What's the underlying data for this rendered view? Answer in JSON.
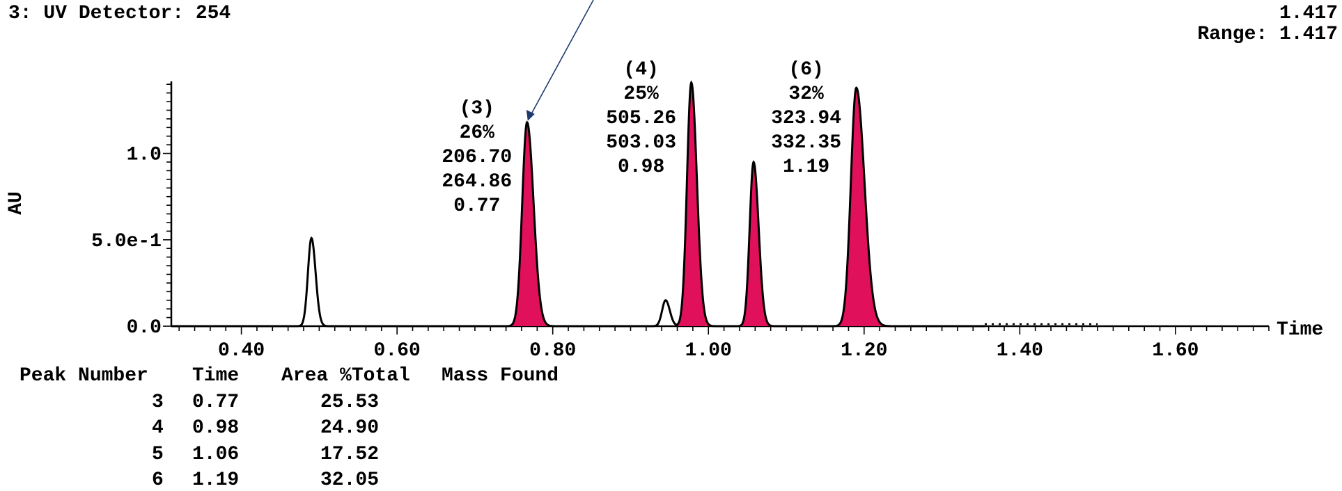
{
  "header": {
    "title": "3: UV Detector: 254",
    "max_value": "1.417",
    "range_text": "Range: 1.417"
  },
  "chart_data": {
    "type": "line",
    "xlabel": "Time",
    "ylabel": "AU",
    "xlim": [
      0.31,
      1.72
    ],
    "ylim": [
      0,
      1.417
    ],
    "x_ticks": [
      {
        "value": 0.4,
        "label": "0.40"
      },
      {
        "value": 0.6,
        "label": "0.60"
      },
      {
        "value": 0.8,
        "label": "0.80"
      },
      {
        "value": 1.0,
        "label": "1.00"
      },
      {
        "value": 1.2,
        "label": "1.20"
      },
      {
        "value": 1.4,
        "label": "1.40"
      },
      {
        "value": 1.6,
        "label": "1.60"
      }
    ],
    "y_ticks": [
      {
        "value": 0.0,
        "label": "0.0"
      },
      {
        "value": 0.5,
        "label": "5.0e-1"
      },
      {
        "value": 1.0,
        "label": "1.0"
      }
    ],
    "peaks": [
      {
        "time": 0.49,
        "height": 0.51,
        "sigma": 0.0045,
        "tail": 1.2,
        "filled": false
      },
      {
        "time": 0.767,
        "height": 1.18,
        "sigma": 0.0062,
        "tail": 1.35,
        "filled": true
      },
      {
        "time": 0.945,
        "height": 0.15,
        "sigma": 0.0045,
        "tail": 1.2,
        "filled": false
      },
      {
        "time": 0.978,
        "height": 1.41,
        "sigma": 0.0055,
        "tail": 1.3,
        "filled": true
      },
      {
        "time": 1.058,
        "height": 0.95,
        "sigma": 0.005,
        "tail": 1.3,
        "filled": true
      },
      {
        "time": 1.19,
        "height": 1.38,
        "sigma": 0.007,
        "tail": 1.5,
        "filled": true
      }
    ],
    "annotations": [
      {
        "peak_time": 0.767,
        "lines": [
          "(3)",
          "26%",
          "206.70",
          "264.86",
          "0.77"
        ]
      },
      {
        "peak_time": 0.978,
        "lines": [
          "(4)",
          "25%",
          "505.26",
          "503.03",
          "0.98"
        ]
      },
      {
        "peak_time": 1.19,
        "lines": [
          "(6)",
          "32%",
          "323.94",
          "332.35",
          "1.19"
        ]
      }
    ],
    "colors": {
      "fill": "#e0105a",
      "line": "#000000",
      "arrow": "#1f3a6e"
    }
  },
  "table": {
    "headers": [
      "Peak Number",
      "Time",
      "Area %Total",
      "Mass Found"
    ],
    "rows": [
      {
        "peak": "3",
        "time": "0.77",
        "area": "25.53",
        "mass": ""
      },
      {
        "peak": "4",
        "time": "0.98",
        "area": "24.90",
        "mass": ""
      },
      {
        "peak": "5",
        "time": "1.06",
        "area": "17.52",
        "mass": ""
      },
      {
        "peak": "6",
        "time": "1.19",
        "area": "32.05",
        "mass": ""
      }
    ]
  }
}
